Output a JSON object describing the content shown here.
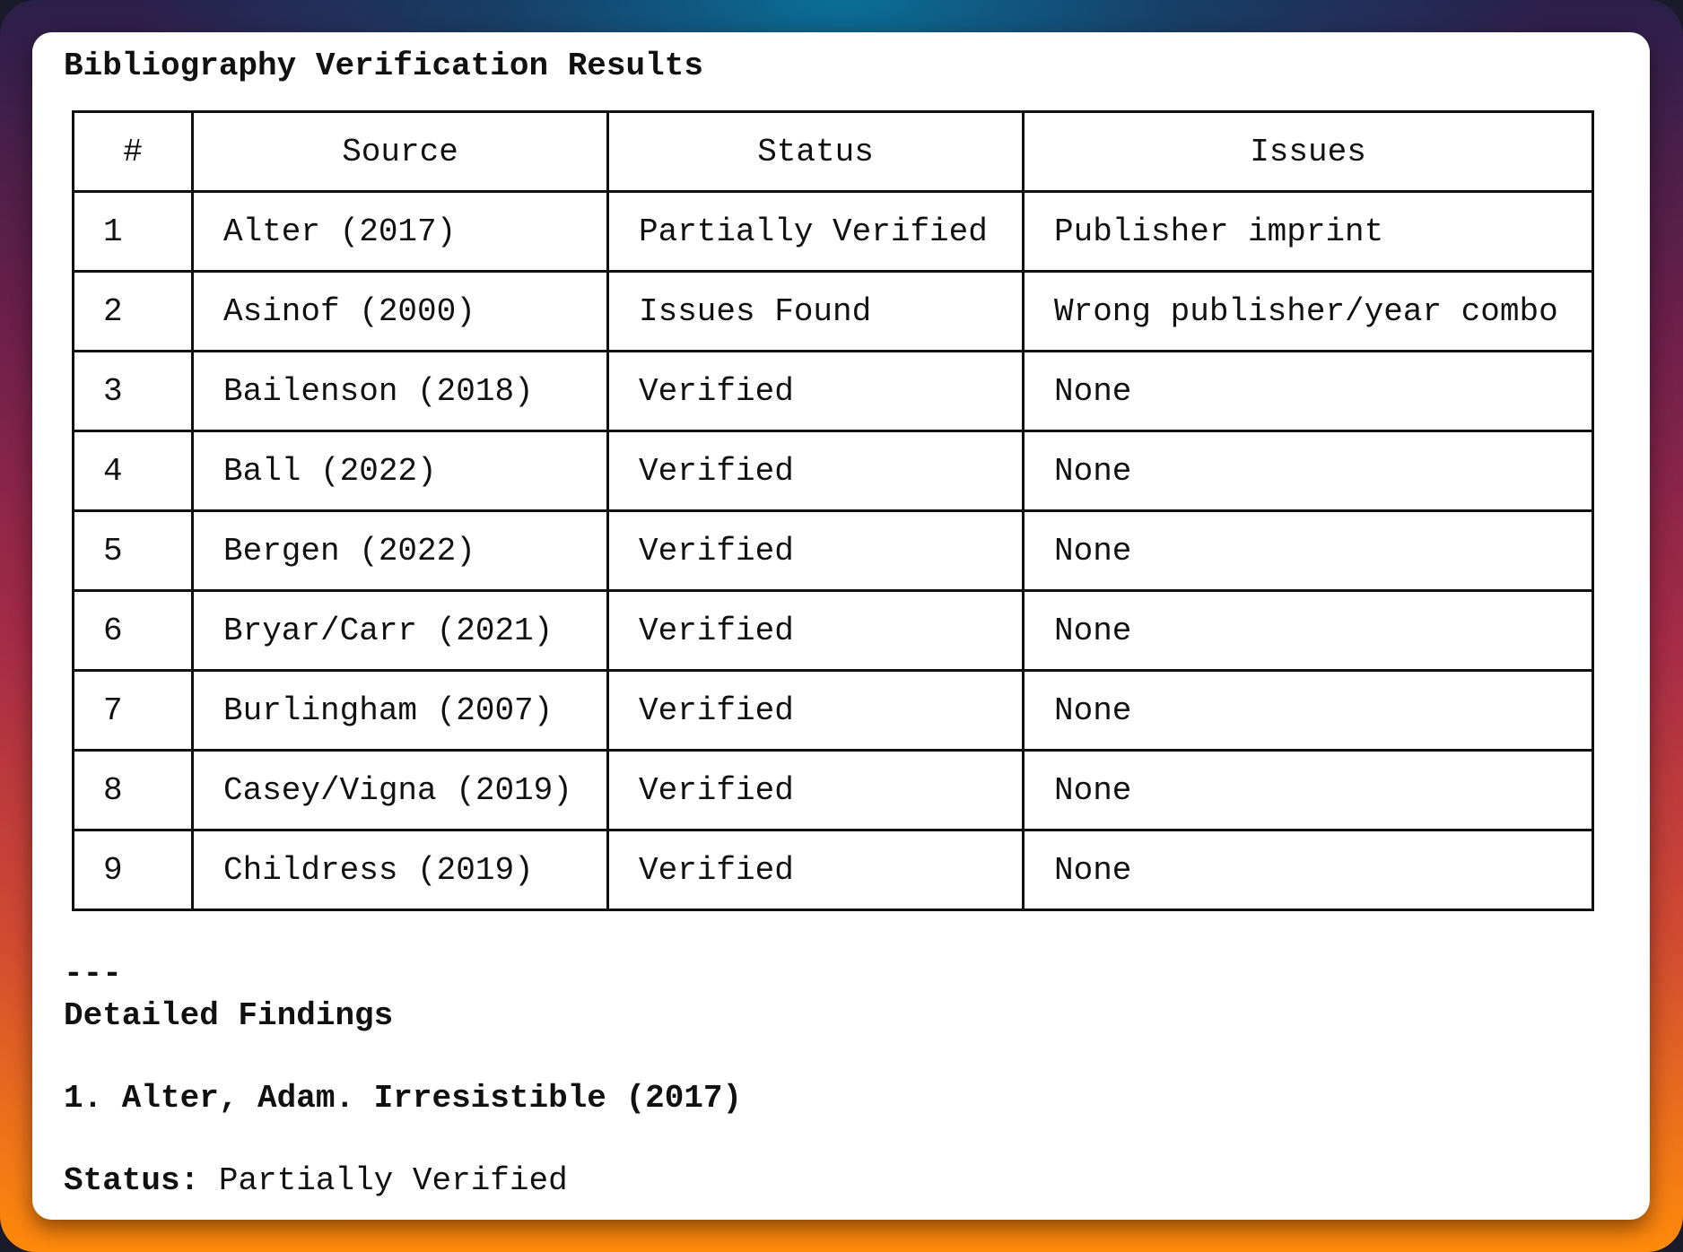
{
  "title": "Bibliography Verification Results",
  "table": {
    "headers": [
      "#",
      "Source",
      "Status",
      "Issues"
    ],
    "rows": [
      [
        "1",
        "Alter (2017)",
        "Partially Verified",
        "Publisher imprint"
      ],
      [
        "2",
        "Asinof (2000)",
        "Issues Found",
        "Wrong publisher/year combo"
      ],
      [
        "3",
        "Bailenson (2018)",
        "Verified",
        "None"
      ],
      [
        "4",
        "Ball (2022)",
        "Verified",
        "None"
      ],
      [
        "5",
        "Bergen (2022)",
        "Verified",
        "None"
      ],
      [
        "6",
        "Bryar/Carr (2021)",
        "Verified",
        "None"
      ],
      [
        "7",
        "Burlingham (2007)",
        "Verified",
        "None"
      ],
      [
        "8",
        "Casey/Vigna (2019)",
        "Verified",
        "None"
      ],
      [
        "9",
        "Childress (2019)",
        "Verified",
        "None"
      ]
    ]
  },
  "divider": "---",
  "detailed": {
    "heading": "Detailed Findings",
    "item_title": "1. Alter, Adam. Irresistible (2017)",
    "status_label": "Status:",
    "status_value": "Partially Verified"
  }
}
